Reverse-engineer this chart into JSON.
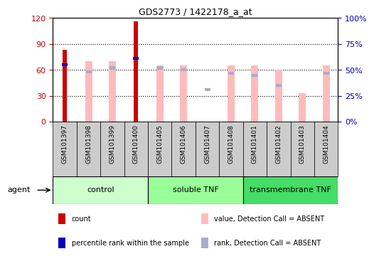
{
  "title": "GDS2773 / 1422178_a_at",
  "samples": [
    "GSM101397",
    "GSM101398",
    "GSM101399",
    "GSM101400",
    "GSM101405",
    "GSM101406",
    "GSM101407",
    "GSM101408",
    "GSM101401",
    "GSM101402",
    "GSM101403",
    "GSM101404"
  ],
  "count_values": [
    83,
    0,
    0,
    116,
    0,
    0,
    0,
    0,
    0,
    0,
    0,
    0
  ],
  "percentile_rank_values": [
    55,
    0,
    0,
    61,
    0,
    0,
    0,
    0,
    0,
    0,
    0,
    0
  ],
  "value_absent": [
    0,
    70,
    70,
    0,
    65,
    65,
    0,
    65,
    65,
    60,
    33,
    65
  ],
  "rank_absent_val": [
    0,
    48,
    52,
    0,
    52,
    50,
    31,
    47,
    45,
    35,
    0,
    47
  ],
  "groups": [
    {
      "label": "control",
      "start": 0,
      "end": 4
    },
    {
      "label": "soluble TNF",
      "start": 4,
      "end": 8
    },
    {
      "label": "transmembrane TNF",
      "start": 8,
      "end": 12
    }
  ],
  "group_colors": [
    "#ccffcc",
    "#99ff99",
    "#44dd66"
  ],
  "ylim_left": [
    0,
    120
  ],
  "ylim_right": [
    0,
    100
  ],
  "yticks_left": [
    0,
    30,
    60,
    90,
    120
  ],
  "yticks_right": [
    0,
    25,
    50,
    75,
    100
  ],
  "ytick_labels_left": [
    "0",
    "30",
    "60",
    "90",
    "120"
  ],
  "ytick_labels_right": [
    "0%",
    "25%",
    "50%",
    "75%",
    "100%"
  ],
  "colors": {
    "count": "#cc0000",
    "percentile_rank": "#0000bb",
    "value_absent": "#ffbbbb",
    "rank_absent": "#aaaacc",
    "tick_label_left": "#cc0000",
    "tick_label_right": "#0000bb",
    "bar_bg": "#cccccc",
    "plot_bg": "#ffffff"
  },
  "legend_labels": [
    "count",
    "percentile rank within the sample",
    "value, Detection Call = ABSENT",
    "rank, Detection Call = ABSENT"
  ],
  "legend_colors": [
    "#cc0000",
    "#0000bb",
    "#ffbbbb",
    "#aaaacc"
  ],
  "bar_width": 0.18,
  "absent_bar_width": 0.12,
  "agent_label": "agent"
}
